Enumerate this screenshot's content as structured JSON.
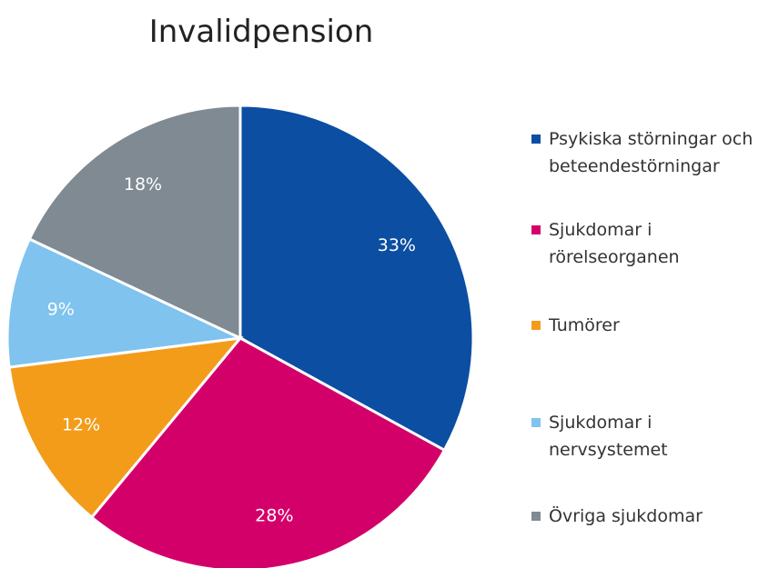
{
  "chart_data": {
    "type": "pie",
    "title": "Invalidpension",
    "categories": [
      "Psykiska störningar och beteendestörningar",
      "Sjukdomar i rörelseorganen",
      "Tumörer",
      "Sjukdomar i nervsystemet",
      "Övriga sjukdomar"
    ],
    "values": [
      33,
      28,
      12,
      9,
      18
    ],
    "value_labels": [
      "33%",
      "28%",
      "12%",
      "9%",
      "18%"
    ],
    "colors": [
      "#0b4ea2",
      "#d4006a",
      "#f39c1a",
      "#7fc3ee",
      "#7f8a92"
    ]
  }
}
